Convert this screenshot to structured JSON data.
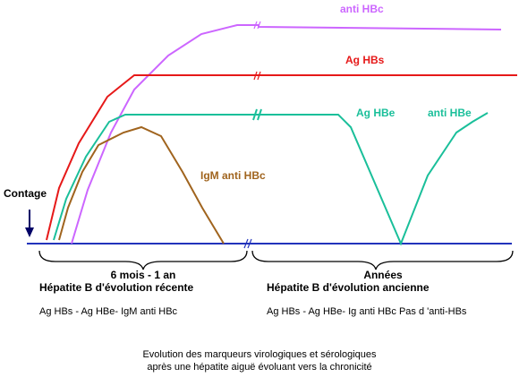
{
  "labels": {
    "anti_hbc": "anti HBc",
    "ag_hbs": "Ag HBs",
    "ag_hbe": "Ag HBe",
    "anti_hbe": "anti HBe",
    "igm_anti_hbc": "IgM anti HBc",
    "contage": "Contage"
  },
  "periods": {
    "recent": {
      "duration": "6 mois - 1 an",
      "title": "Hépatite B d'évolution récente",
      "markers": "Ag HBs - Ag HBe- IgM anti HBc"
    },
    "old": {
      "duration": "Années",
      "title": "Hépatite B d'évolution ancienne",
      "markers": "Ag HBs - Ag HBe- Ig anti HBc Pas d 'anti-HBs"
    }
  },
  "caption": {
    "line1": "Evolution des marqueurs virologiques et sérologiques",
    "line2": "après une hépatite aiguë évoluant vers la chronicité"
  },
  "colors": {
    "anti_hbc": "#cc66ff",
    "ag_hbs": "#e61919",
    "ag_hbe": "#1abf9a",
    "igm_anti_hbc": "#a0641e",
    "baseline": "#2233bb",
    "arrow": "#000066",
    "text": "#000000"
  }
}
